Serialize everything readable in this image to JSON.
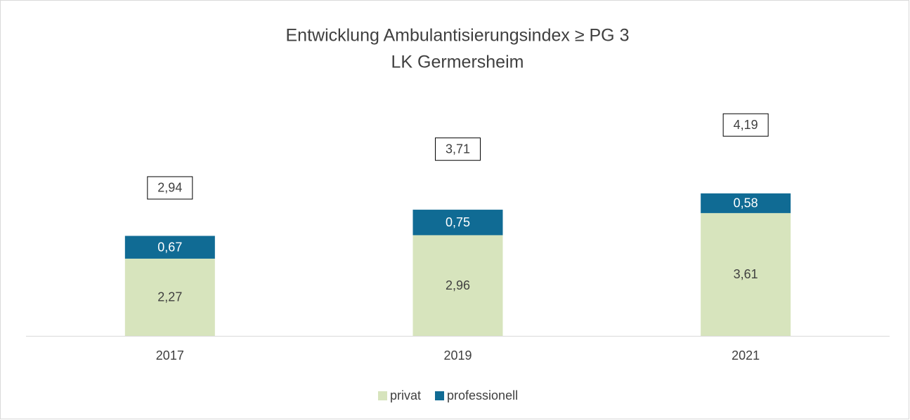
{
  "chart_data": {
    "type": "stacked_bar",
    "title": "Entwicklung Ambulantisierungsindex ≥ PG 3",
    "subtitle": "LK Germersheim",
    "categories": [
      "2017",
      "2019",
      "2021"
    ],
    "series": [
      {
        "name": "privat",
        "color": "#d7e4bd",
        "values": [
          2.27,
          2.96,
          3.61
        ],
        "value_labels": [
          "2,27",
          "2,96",
          "3,61"
        ]
      },
      {
        "name": "professionell",
        "color": "#106b94",
        "values": [
          0.67,
          0.75,
          0.58
        ],
        "value_labels": [
          "0,67",
          "0,75",
          "0,58"
        ]
      }
    ],
    "totals": [
      2.94,
      3.71,
      4.19
    ],
    "total_labels": [
      "2,94",
      "3,71",
      "4,19"
    ],
    "legend": "bottom"
  }
}
